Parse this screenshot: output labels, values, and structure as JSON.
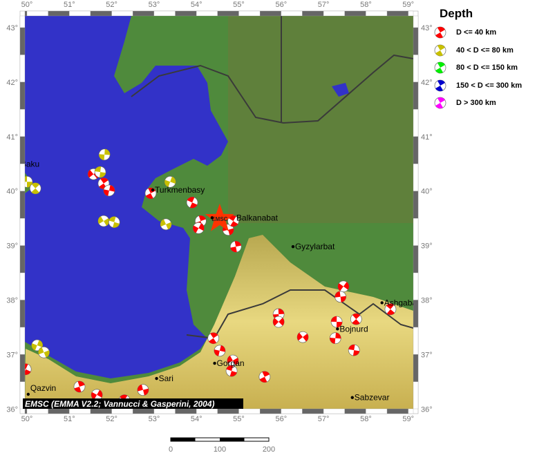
{
  "map": {
    "lon_range": [
      49.95,
      59.12
    ],
    "lat_range": [
      36.0,
      43.2
    ],
    "lon_ticks": [
      "50°",
      "51°",
      "52°",
      "53°",
      "54°",
      "55°",
      "56°",
      "57°",
      "58°",
      "59°"
    ],
    "lat_ticks": [
      "36°",
      "37°",
      "38°",
      "39°",
      "40°",
      "41°",
      "42°",
      "43°"
    ],
    "colors": {
      "sea": "#3232c8",
      "land": "#4f8a3c",
      "lowland": "#6a7a3a",
      "mountains": "#d9c86a",
      "border": "#3a3a3a"
    },
    "credit": "EMSC (EMMA V2.2; Vannucci & Gasperini, 2004)",
    "epicenter": {
      "label": "EMSC",
      "lon": 54.55,
      "lat": 39.49,
      "color": "#ff3300"
    },
    "cities": [
      {
        "name": "Baku",
        "lon": 49.9,
        "lat": 40.38,
        "pos": "above"
      },
      {
        "name": "Turkmenbasy",
        "lon": 52.97,
        "lat": 40.02,
        "pos": "right"
      },
      {
        "name": "Balkanabat",
        "lon": 54.37,
        "lat": 39.51,
        "pos": "right"
      },
      {
        "name": "Gyzylarbat",
        "lon": 56.28,
        "lat": 38.98,
        "pos": "right"
      },
      {
        "name": "Ashgabat",
        "lon": 58.38,
        "lat": 37.95,
        "pos": "right"
      },
      {
        "name": "Bojnurd",
        "lon": 57.33,
        "lat": 37.47,
        "pos": "right"
      },
      {
        "name": "Gorgan",
        "lon": 54.43,
        "lat": 36.84,
        "pos": "right"
      },
      {
        "name": "Sari",
        "lon": 53.06,
        "lat": 36.56,
        "pos": "right"
      },
      {
        "name": "Qazvin",
        "lon": 50.03,
        "lat": 36.27,
        "pos": "right"
      },
      {
        "name": "Sabzevar",
        "lon": 57.68,
        "lat": 36.21,
        "pos": "right"
      }
    ],
    "events": [
      {
        "lon": 50.0,
        "lat": 40.17,
        "depth": 1
      },
      {
        "lon": 50.2,
        "lat": 40.05,
        "depth": 1
      },
      {
        "lon": 51.83,
        "lat": 40.67,
        "depth": 1
      },
      {
        "lon": 51.57,
        "lat": 40.31,
        "depth": 0
      },
      {
        "lon": 51.73,
        "lat": 40.35,
        "depth": 1
      },
      {
        "lon": 51.81,
        "lat": 40.14,
        "depth": 0
      },
      {
        "lon": 51.94,
        "lat": 40.01,
        "depth": 0
      },
      {
        "lon": 51.81,
        "lat": 39.45,
        "depth": 1
      },
      {
        "lon": 52.06,
        "lat": 39.43,
        "depth": 1
      },
      {
        "lon": 52.92,
        "lat": 39.96,
        "depth": 0
      },
      {
        "lon": 53.38,
        "lat": 40.17,
        "depth": 1
      },
      {
        "lon": 53.28,
        "lat": 39.39,
        "depth": 1
      },
      {
        "lon": 53.9,
        "lat": 39.79,
        "depth": 0
      },
      {
        "lon": 54.1,
        "lat": 39.45,
        "depth": 0
      },
      {
        "lon": 54.05,
        "lat": 39.32,
        "depth": 0
      },
      {
        "lon": 54.75,
        "lat": 39.29,
        "depth": 0
      },
      {
        "lon": 54.87,
        "lat": 39.45,
        "depth": 0
      },
      {
        "lon": 54.93,
        "lat": 38.98,
        "depth": 0
      },
      {
        "lon": 57.47,
        "lat": 38.25,
        "depth": 0
      },
      {
        "lon": 57.4,
        "lat": 38.06,
        "depth": 0
      },
      {
        "lon": 58.58,
        "lat": 37.83,
        "depth": 0
      },
      {
        "lon": 55.94,
        "lat": 37.74,
        "depth": 0
      },
      {
        "lon": 55.94,
        "lat": 37.6,
        "depth": 0
      },
      {
        "lon": 57.31,
        "lat": 37.6,
        "depth": 0
      },
      {
        "lon": 57.77,
        "lat": 37.65,
        "depth": 0
      },
      {
        "lon": 57.28,
        "lat": 37.3,
        "depth": 0
      },
      {
        "lon": 56.51,
        "lat": 37.32,
        "depth": 0
      },
      {
        "lon": 57.72,
        "lat": 37.08,
        "depth": 0
      },
      {
        "lon": 54.4,
        "lat": 37.3,
        "depth": 0
      },
      {
        "lon": 54.55,
        "lat": 37.07,
        "depth": 0
      },
      {
        "lon": 54.86,
        "lat": 36.89,
        "depth": 0
      },
      {
        "lon": 54.83,
        "lat": 36.7,
        "depth": 0
      },
      {
        "lon": 55.61,
        "lat": 36.59,
        "depth": 0
      },
      {
        "lon": 50.24,
        "lat": 37.17,
        "depth": 1
      },
      {
        "lon": 50.4,
        "lat": 37.04,
        "depth": 1
      },
      {
        "lon": 49.97,
        "lat": 36.73,
        "depth": 0
      },
      {
        "lon": 51.24,
        "lat": 36.41,
        "depth": 0
      },
      {
        "lon": 51.65,
        "lat": 36.26,
        "depth": 0
      },
      {
        "lon": 52.74,
        "lat": 36.35,
        "depth": 0
      },
      {
        "lon": 52.3,
        "lat": 36.16,
        "depth": 0
      }
    ]
  },
  "scale_bar": {
    "labels": [
      "0",
      "100",
      "200"
    ]
  },
  "legend": {
    "title": "Depth",
    "items": [
      {
        "label": "D <= 40 km",
        "color": "#ff0000"
      },
      {
        "label": "40 < D <= 80 km",
        "color": "#c8c000"
      },
      {
        "label": "80 < D <= 150 km",
        "color": "#00ee00"
      },
      {
        "label": "150 < D <= 300 km",
        "color": "#0000cc"
      },
      {
        "label": "D > 300 km",
        "color": "#ff00ff"
      }
    ]
  }
}
